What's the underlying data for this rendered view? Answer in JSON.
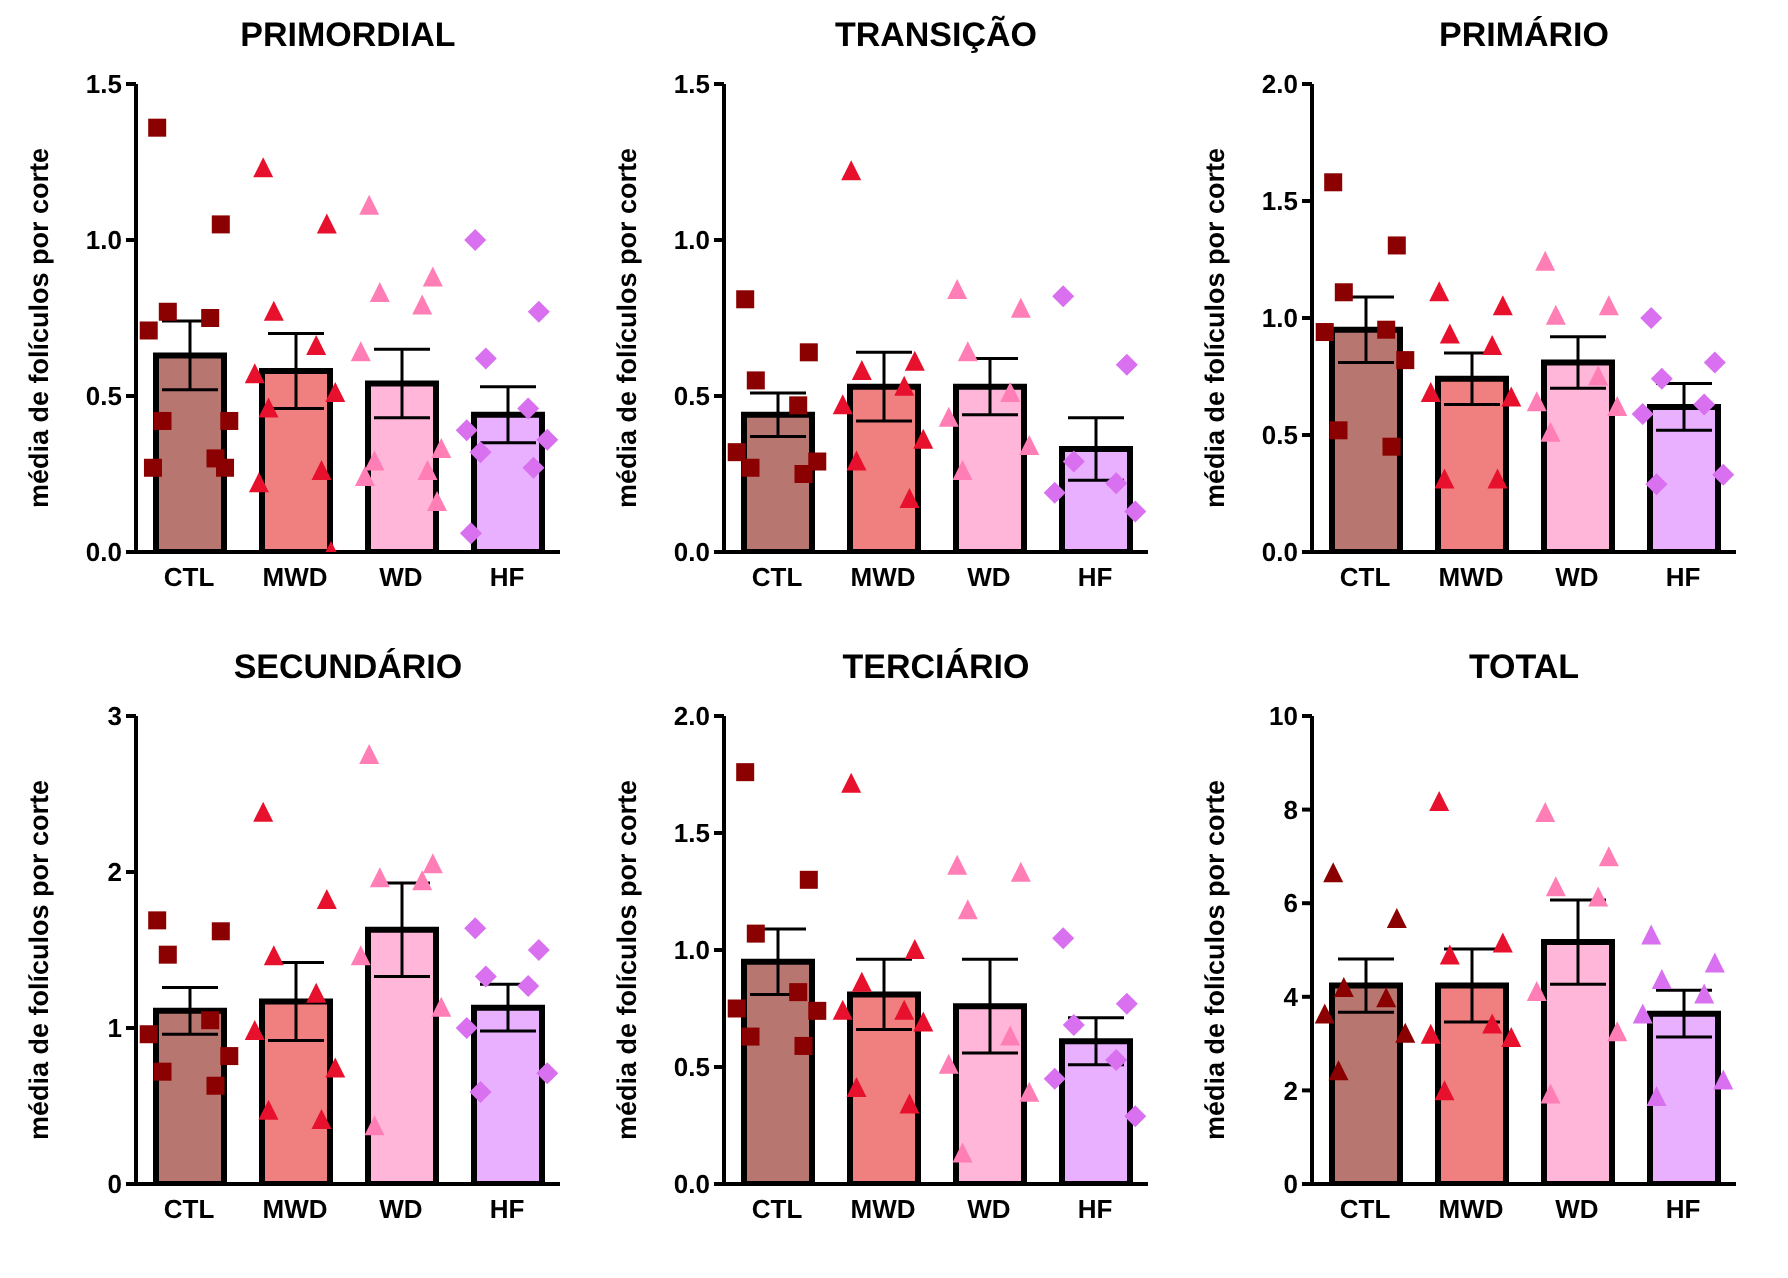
{
  "chart_data": [
    {
      "type": "bar",
      "title": "PRIMORDIAL",
      "ylabel": "média de folículos por corte",
      "categories": [
        "CTL",
        "MWD",
        "WD",
        "HF"
      ],
      "ylim": [
        0,
        1.5
      ],
      "yticks": [
        {
          "value": 0,
          "label": "0.0"
        },
        {
          "value": 0.5,
          "label": "0.5"
        },
        {
          "value": 1,
          "label": "1.0"
        },
        {
          "value": 1.5,
          "label": "1.5"
        }
      ],
      "series": [
        {
          "type": "bar",
          "colors": [
            "#b87670",
            "#f08080",
            "#ffb6d9",
            "#e8b0ff"
          ],
          "values": [
            0.63,
            0.58,
            0.54,
            0.44
          ],
          "errors": [
            0.11,
            0.12,
            0.11,
            0.09
          ]
        },
        {
          "type": "scatter",
          "color": "#8b0000",
          "marker": "square",
          "x": [
            "CTL",
            "CTL",
            "CTL",
            "CTL",
            "CTL",
            "CTL",
            "CTL",
            "CTL",
            "CTL",
            "CTL"
          ],
          "values": [
            1.36,
            1.05,
            0.77,
            0.75,
            0.71,
            0.42,
            0.42,
            0.3,
            0.27,
            0.27
          ]
        },
        {
          "type": "scatter",
          "color": "#e8112d",
          "marker": "triangle",
          "x": [
            "MWD",
            "MWD",
            "MWD",
            "MWD",
            "MWD",
            "MWD",
            "MWD",
            "MWD",
            "MWD",
            "MWD"
          ],
          "values": [
            1.23,
            1.05,
            0.77,
            0.66,
            0.57,
            0.51,
            0.46,
            0.26,
            0.22,
            0
          ]
        },
        {
          "type": "scatter",
          "color": "#ff7eb6",
          "marker": "triangle",
          "x": [
            "WD",
            "WD",
            "WD",
            "WD",
            "WD",
            "WD",
            "WD",
            "WD",
            "WD",
            "WD"
          ],
          "values": [
            1.11,
            0.88,
            0.83,
            0.79,
            0.64,
            0.33,
            0.29,
            0.26,
            0.24,
            0.16
          ]
        },
        {
          "type": "scatter",
          "color": "#d870f0",
          "marker": "diamond",
          "x": [
            "HF",
            "HF",
            "HF",
            "HF",
            "HF",
            "HF",
            "HF",
            "HF",
            "HF"
          ],
          "values": [
            1.0,
            0.77,
            0.62,
            0.46,
            0.39,
            0.36,
            0.32,
            0.27,
            0.06
          ]
        }
      ]
    },
    {
      "type": "bar",
      "title": "TRANSIÇÃO",
      "ylabel": "média de folículos por corte",
      "categories": [
        "CTL",
        "MWD",
        "WD",
        "HF"
      ],
      "ylim": [
        0,
        1.5
      ],
      "yticks": [
        {
          "value": 0,
          "label": "0.0"
        },
        {
          "value": 0.5,
          "label": "0.5"
        },
        {
          "value": 1,
          "label": "1.0"
        },
        {
          "value": 1.5,
          "label": "1.5"
        }
      ],
      "series": [
        {
          "type": "bar",
          "colors": [
            "#b87670",
            "#f08080",
            "#ffb6d9",
            "#e8b0ff"
          ],
          "values": [
            0.44,
            0.53,
            0.53,
            0.33
          ],
          "errors": [
            0.07,
            0.11,
            0.09,
            0.1
          ]
        },
        {
          "type": "scatter",
          "color": "#8b0000",
          "marker": "square",
          "x": [
            "CTL",
            "CTL",
            "CTL",
            "CTL",
            "CTL",
            "CTL",
            "CTL",
            "CTL"
          ],
          "values": [
            0.81,
            0.64,
            0.55,
            0.47,
            0.32,
            0.29,
            0.27,
            0.25
          ]
        },
        {
          "type": "scatter",
          "color": "#e8112d",
          "marker": "triangle",
          "x": [
            "MWD",
            "MWD",
            "MWD",
            "MWD",
            "MWD",
            "MWD",
            "MWD",
            "MWD"
          ],
          "values": [
            1.22,
            0.61,
            0.58,
            0.53,
            0.47,
            0.36,
            0.29,
            0.17
          ]
        },
        {
          "type": "scatter",
          "color": "#ff7eb6",
          "marker": "triangle",
          "x": [
            "WD",
            "WD",
            "WD",
            "WD",
            "WD",
            "WD",
            "WD"
          ],
          "values": [
            0.84,
            0.78,
            0.64,
            0.51,
            0.43,
            0.34,
            0.26
          ]
        },
        {
          "type": "scatter",
          "color": "#d870f0",
          "marker": "diamond",
          "x": [
            "HF",
            "HF",
            "HF",
            "HF",
            "HF",
            "HF"
          ],
          "values": [
            0.82,
            0.6,
            0.29,
            0.22,
            0.19,
            0.13
          ]
        }
      ]
    },
    {
      "type": "bar",
      "title": "PRIMÁRIO",
      "ylabel": "média de folículos por corte",
      "categories": [
        "CTL",
        "MWD",
        "WD",
        "HF"
      ],
      "ylim": [
        0,
        2
      ],
      "yticks": [
        {
          "value": 0,
          "label": "0.0"
        },
        {
          "value": 0.5,
          "label": "0.5"
        },
        {
          "value": 1,
          "label": "1.0"
        },
        {
          "value": 1.5,
          "label": "1.5"
        },
        {
          "value": 2,
          "label": "2.0"
        }
      ],
      "series": [
        {
          "type": "bar",
          "colors": [
            "#b87670",
            "#f08080",
            "#ffb6d9",
            "#e8b0ff"
          ],
          "values": [
            0.95,
            0.74,
            0.81,
            0.62
          ],
          "errors": [
            0.14,
            0.11,
            0.11,
            0.1
          ]
        },
        {
          "type": "scatter",
          "color": "#8b0000",
          "marker": "square",
          "x": [
            "CTL",
            "CTL",
            "CTL",
            "CTL",
            "CTL",
            "CTL",
            "CTL",
            "CTL"
          ],
          "values": [
            1.58,
            1.31,
            1.11,
            0.95,
            0.94,
            0.82,
            0.52,
            0.45
          ]
        },
        {
          "type": "scatter",
          "color": "#e8112d",
          "marker": "triangle",
          "x": [
            "MWD",
            "MWD",
            "MWD",
            "MWD",
            "MWD",
            "MWD",
            "MWD",
            "MWD"
          ],
          "values": [
            1.11,
            1.05,
            0.93,
            0.88,
            0.68,
            0.66,
            0.31,
            0.31
          ]
        },
        {
          "type": "scatter",
          "color": "#ff7eb6",
          "marker": "triangle",
          "x": [
            "WD",
            "WD",
            "WD",
            "WD",
            "WD",
            "WD",
            "WD"
          ],
          "values": [
            1.24,
            1.05,
            1.01,
            0.75,
            0.64,
            0.62,
            0.51
          ]
        },
        {
          "type": "scatter",
          "color": "#d870f0",
          "marker": "diamond",
          "x": [
            "HF",
            "HF",
            "HF",
            "HF",
            "HF",
            "HF",
            "HF"
          ],
          "values": [
            1.0,
            0.81,
            0.74,
            0.63,
            0.59,
            0.33,
            0.29
          ]
        }
      ]
    },
    {
      "type": "bar",
      "title": "SECUNDÁRIO",
      "ylabel": "média de folículos por corte",
      "categories": [
        "CTL",
        "MWD",
        "WD",
        "HF"
      ],
      "ylim": [
        0,
        3
      ],
      "yticks": [
        0,
        1,
        2,
        3
      ],
      "series": [
        {
          "type": "bar",
          "colors": [
            "#b87670",
            "#f08080",
            "#ffb6d9",
            "#e8b0ff"
          ],
          "values": [
            1.11,
            1.17,
            1.63,
            1.13
          ],
          "errors": [
            0.15,
            0.25,
            0.3,
            0.15
          ]
        },
        {
          "type": "scatter",
          "color": "#8b0000",
          "marker": "square",
          "x": [
            "CTL",
            "CTL",
            "CTL",
            "CTL",
            "CTL",
            "CTL",
            "CTL",
            "CTL"
          ],
          "values": [
            1.69,
            1.62,
            1.47,
            1.05,
            0.96,
            0.82,
            0.72,
            0.63
          ]
        },
        {
          "type": "scatter",
          "color": "#e8112d",
          "marker": "triangle",
          "x": [
            "MWD",
            "MWD",
            "MWD",
            "MWD",
            "MWD",
            "MWD",
            "MWD",
            "MWD"
          ],
          "values": [
            2.38,
            1.82,
            1.46,
            1.22,
            0.98,
            0.74,
            0.47,
            0.41
          ]
        },
        {
          "type": "scatter",
          "color": "#ff7eb6",
          "marker": "triangle",
          "x": [
            "WD",
            "WD",
            "WD",
            "WD",
            "WD",
            "WD",
            "WD"
          ],
          "values": [
            2.75,
            2.05,
            1.96,
            1.94,
            1.46,
            1.13,
            0.37
          ]
        },
        {
          "type": "scatter",
          "color": "#d870f0",
          "marker": "diamond",
          "x": [
            "HF",
            "HF",
            "HF",
            "HF",
            "HF",
            "HF",
            "HF"
          ],
          "values": [
            1.64,
            1.5,
            1.33,
            1.27,
            1.0,
            0.71,
            0.59
          ]
        }
      ]
    },
    {
      "type": "bar",
      "title": "TERCIÁRIO",
      "ylabel": "média de folículos por corte",
      "categories": [
        "CTL",
        "MWD",
        "WD",
        "HF"
      ],
      "ylim": [
        0,
        2
      ],
      "yticks": [
        {
          "value": 0,
          "label": "0.0"
        },
        {
          "value": 0.5,
          "label": "0.5"
        },
        {
          "value": 1,
          "label": "1.0"
        },
        {
          "value": 1.5,
          "label": "1.5"
        },
        {
          "value": 2,
          "label": "2.0"
        }
      ],
      "series": [
        {
          "type": "bar",
          "colors": [
            "#b87670",
            "#f08080",
            "#ffb6d9",
            "#e8b0ff"
          ],
          "values": [
            0.95,
            0.81,
            0.76,
            0.61
          ],
          "errors": [
            0.14,
            0.15,
            0.2,
            0.1
          ]
        },
        {
          "type": "scatter",
          "color": "#8b0000",
          "marker": "square",
          "x": [
            "CTL",
            "CTL",
            "CTL",
            "CTL",
            "CTL",
            "CTL",
            "CTL",
            "CTL"
          ],
          "values": [
            1.76,
            1.3,
            1.07,
            0.82,
            0.75,
            0.74,
            0.63,
            0.59
          ]
        },
        {
          "type": "scatter",
          "color": "#e8112d",
          "marker": "triangle",
          "x": [
            "MWD",
            "MWD",
            "MWD",
            "MWD",
            "MWD",
            "MWD",
            "MWD",
            "MWD"
          ],
          "values": [
            1.71,
            1.0,
            0.86,
            0.74,
            0.74,
            0.69,
            0.41,
            0.34
          ]
        },
        {
          "type": "scatter",
          "color": "#ff7eb6",
          "marker": "triangle",
          "x": [
            "WD",
            "WD",
            "WD",
            "WD",
            "WD",
            "WD",
            "WD"
          ],
          "values": [
            1.36,
            1.33,
            1.17,
            0.63,
            0.51,
            0.39,
            0.13
          ]
        },
        {
          "type": "scatter",
          "color": "#d870f0",
          "marker": "diamond",
          "x": [
            "HF",
            "HF",
            "HF",
            "HF",
            "HF",
            "HF"
          ],
          "values": [
            1.05,
            0.77,
            0.68,
            0.53,
            0.45,
            0.29
          ]
        }
      ]
    },
    {
      "type": "bar",
      "title": "TOTAL",
      "ylabel": "média de folículos por corte",
      "categories": [
        "CTL",
        "MWD",
        "WD",
        "HF"
      ],
      "ylim": [
        0,
        10
      ],
      "yticks": [
        0,
        2,
        4,
        6,
        8,
        10
      ],
      "series": [
        {
          "type": "bar",
          "colors": [
            "#b87670",
            "#f08080",
            "#ffb6d9",
            "#e8b0ff"
          ],
          "values": [
            4.24,
            4.24,
            5.17,
            3.64
          ],
          "errors": [
            0.57,
            0.78,
            0.9,
            0.5
          ]
        },
        {
          "type": "scatter",
          "color": "#8b0000",
          "marker": "triangle",
          "x": [
            "CTL",
            "CTL",
            "CTL",
            "CTL",
            "CTL",
            "CTL",
            "CTL"
          ],
          "values": [
            6.64,
            5.66,
            4.19,
            3.97,
            3.62,
            3.21,
            2.41
          ]
        },
        {
          "type": "scatter",
          "color": "#e8112d",
          "marker": "triangle",
          "x": [
            "MWD",
            "MWD",
            "MWD",
            "MWD",
            "MWD",
            "MWD",
            "MWD"
          ],
          "values": [
            8.16,
            5.14,
            4.88,
            3.41,
            3.19,
            3.12,
            1.98
          ]
        },
        {
          "type": "scatter",
          "color": "#ff7eb6",
          "marker": "triangle",
          "x": [
            "WD",
            "WD",
            "WD",
            "WD",
            "WD",
            "WD",
            "WD"
          ],
          "values": [
            7.93,
            6.98,
            6.34,
            6.12,
            4.1,
            3.24,
            1.91
          ]
        },
        {
          "type": "scatter",
          "color": "#d870f0",
          "marker": "triangle",
          "x": [
            "HF",
            "HF",
            "HF",
            "HF",
            "HF",
            "HF",
            "HF"
          ],
          "values": [
            5.31,
            4.71,
            4.36,
            4.05,
            3.62,
            2.21,
            1.86
          ]
        }
      ]
    }
  ]
}
